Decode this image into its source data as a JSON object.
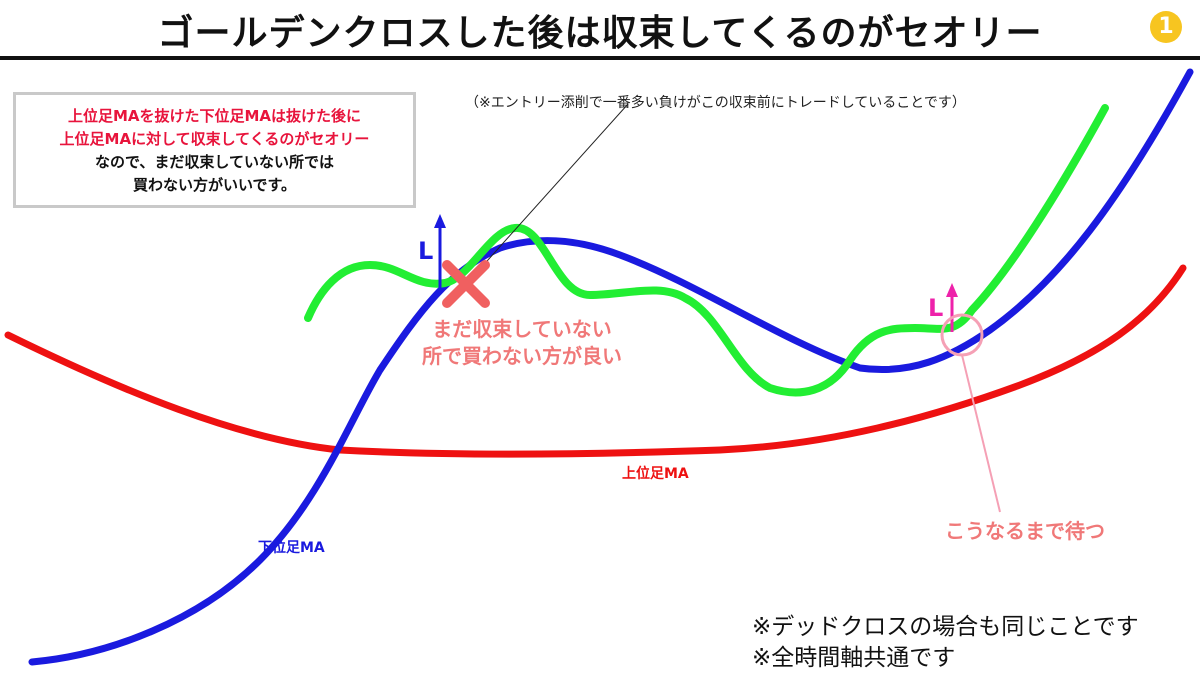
{
  "header": {
    "title": "ゴールデンクロスした後は収束してくるのがセオリー",
    "badge": "1"
  },
  "info_box": {
    "line1": "上位足MAを抜けた下位足MAは抜けた後に",
    "line2": "上位足MAに対して収束してくるのがセオリー",
    "line3": "なので、まだ収束していない所では",
    "line4": "買わない方がいいです。"
  },
  "annotations": {
    "top_note": "（※エントリー添削で一番多い負けがこの収束前にトレードしていることです）",
    "cross_label_line1": "まだ収束していない",
    "cross_label_line2": "所で買わない方が良い",
    "wait_label": "こうなるまで待つ",
    "entry_marker_1": "L",
    "entry_marker_2": "L"
  },
  "lines": {
    "upper_ma_label": "上位足MA",
    "lower_ma_label": "下位足MA",
    "colors": {
      "upper_ma": "#ee1111",
      "lower_ma": "#1a1adf",
      "price": "#22ee33",
      "bad_mark": "#f06060",
      "good_mark": "#f5a0b5"
    }
  },
  "footer": {
    "note1": "※デッドクロスの場合も同じことです",
    "note2": "※全時間軸共通です"
  }
}
